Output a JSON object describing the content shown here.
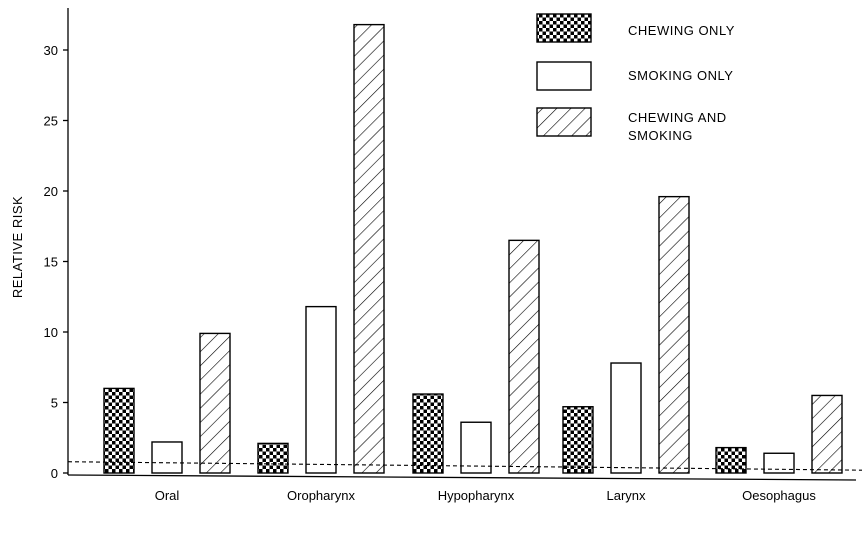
{
  "chart_data": {
    "type": "bar",
    "title": "",
    "xlabel": "",
    "ylabel": "RELATIVE RISK",
    "ylim": [
      0,
      33
    ],
    "yticks": [
      0,
      5,
      10,
      15,
      20,
      25,
      30
    ],
    "categories": [
      "Oral",
      "Oropharynx",
      "Hypopharynx",
      "Larynx",
      "Oesophagus"
    ],
    "series": [
      {
        "name": "CHEWING ONLY",
        "pattern": "crosshatch",
        "values": [
          6.0,
          2.1,
          5.6,
          4.7,
          1.8
        ]
      },
      {
        "name": "SMOKING ONLY",
        "pattern": "none",
        "values": [
          2.2,
          11.8,
          3.6,
          7.8,
          1.4
        ]
      },
      {
        "name": "CHEWING AND SMOKING",
        "pattern": "diagonal",
        "values": [
          9.9,
          31.8,
          16.5,
          19.6,
          5.5
        ]
      }
    ],
    "reference_line": {
      "style": "dashed",
      "y_start": 0.8,
      "y_end": 0.2
    },
    "grid": false,
    "legend": {
      "position": "top-right"
    },
    "colors": {
      "ink": "#000000",
      "background": "#ffffff"
    }
  }
}
